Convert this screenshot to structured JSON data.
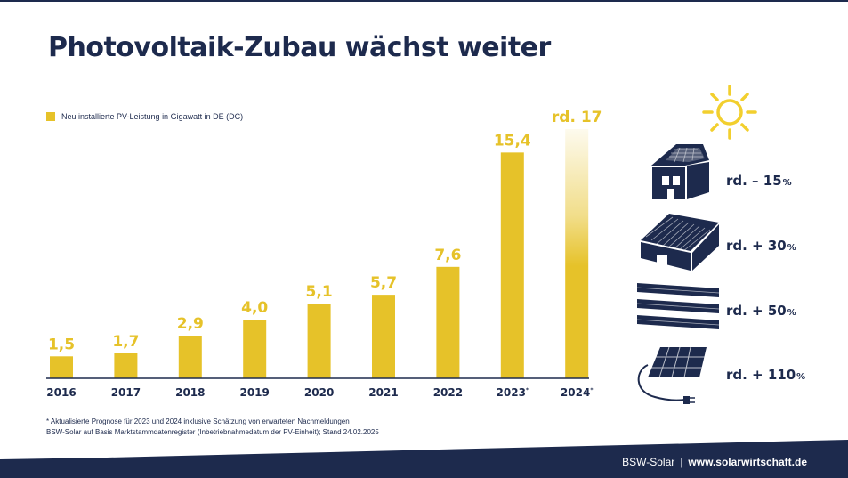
{
  "title": "Photovoltaik-Zubau wächst weiter",
  "legend": {
    "label": "Neu installierte PV-Leistung in Gigawatt in DE (DC)",
    "color": "#e6c229"
  },
  "chart_data": {
    "type": "bar",
    "categories": [
      "2016",
      "2017",
      "2018",
      "2019",
      "2020",
      "2021",
      "2022",
      "2023",
      "2024"
    ],
    "category_footnote": [
      "",
      "",
      "",
      "",
      "",
      "",
      "",
      "*",
      "*"
    ],
    "values": [
      1.5,
      1.7,
      2.9,
      4.0,
      5.1,
      5.7,
      7.6,
      15.4,
      17
    ],
    "value_labels": [
      "1,5",
      "1,7",
      "2,9",
      "4,0",
      "5,1",
      "5,7",
      "7,6",
      "15,4",
      "rd. 17"
    ],
    "estimated": [
      false,
      false,
      false,
      false,
      false,
      false,
      false,
      false,
      true
    ],
    "title": "Photovoltaik-Zubau wächst weiter",
    "series": [
      {
        "name": "Neu installierte PV-Leistung in Gigawatt in DE (DC)",
        "values": [
          1.5,
          1.7,
          2.9,
          4.0,
          5.1,
          5.7,
          7.6,
          15.4,
          17
        ]
      }
    ],
    "ylim": [
      0,
      17
    ],
    "grid": false,
    "legend_position": "top-left"
  },
  "segments": [
    {
      "icon": "house-rooftop-solar-icon",
      "sign": "rd. – ",
      "value": "15",
      "unit": "%"
    },
    {
      "icon": "commercial-rooftop-solar-icon",
      "sign": "rd. + ",
      "value": "30",
      "unit": "%"
    },
    {
      "icon": "ground-mounted-solar-icon",
      "sign": "rd. + ",
      "value": "50",
      "unit": "%"
    },
    {
      "icon": "plug-in-solar-panel-icon",
      "sign": "rd. + ",
      "value": "110",
      "unit": "%"
    }
  ],
  "notes": {
    "forecast": "* Aktualisierte Prognose für 2023 und 2024 inklusive Schätzung von erwarteten Nachmeldungen",
    "source": "BSW-Solar auf Basis Marktstammdatenregister (Inbetriebnahmedatum der PV-Einheit); Stand 24.02.2025"
  },
  "footer": {
    "brand": "BSW-Solar",
    "separator": "|",
    "url": "www.solarwirtschaft.de"
  },
  "colors": {
    "navy": "#1d2a4d",
    "yellow": "#e6c229",
    "sun": "#f2cf2e"
  },
  "icons": {
    "sun": "sun-icon"
  }
}
